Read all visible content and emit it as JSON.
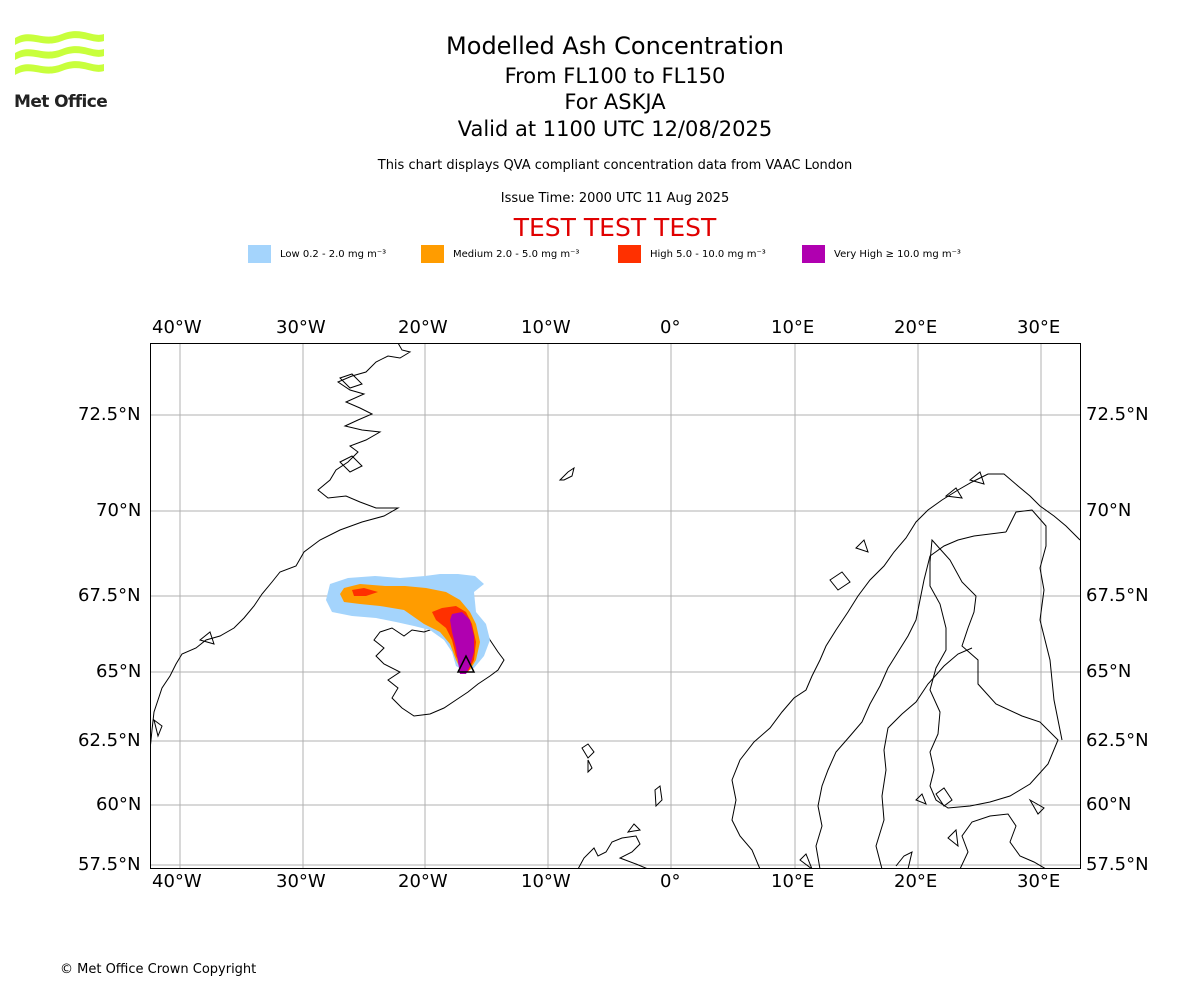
{
  "logo": {
    "text": "Met Office",
    "color": "#c8ff3c"
  },
  "header": {
    "title": "Modelled Ash Concentration",
    "levels": "From FL100 to FL150",
    "volcano": "For ASKJA",
    "valid": "Valid at 1100 UTC 12/08/2025",
    "subtitle": "This chart displays QVA compliant concentration data from VAAC London",
    "issue_time": "Issue Time: 2000 UTC 11 Aug 2025",
    "warning": "TEST TEST TEST"
  },
  "legend": [
    {
      "label": "Low 0.2 - 2.0 mg m⁻³",
      "color": "#a4d4fc"
    },
    {
      "label": "Medium 2.0 - 5.0 mg m⁻³",
      "color": "#ff9c00"
    },
    {
      "label": "High 5.0 - 10.0 mg m⁻³",
      "color": "#ff3000"
    },
    {
      "label": "Very High  ≥  10.0 mg m⁻³",
      "color": "#b000b0"
    }
  ],
  "map": {
    "lon_ticks": [
      "40°W",
      "30°W",
      "20°W",
      "10°W",
      "0°",
      "10°E",
      "20°E",
      "30°E"
    ],
    "lat_ticks": [
      "72.5°N",
      "70°N",
      "67.5°N",
      "65°N",
      "62.5°N",
      "60°N",
      "57.5°N"
    ],
    "gridline_color": "#b0b0b0",
    "volcano_marker": "triangle"
  },
  "footer": {
    "copyright": "© Met Office Crown Copyright"
  }
}
